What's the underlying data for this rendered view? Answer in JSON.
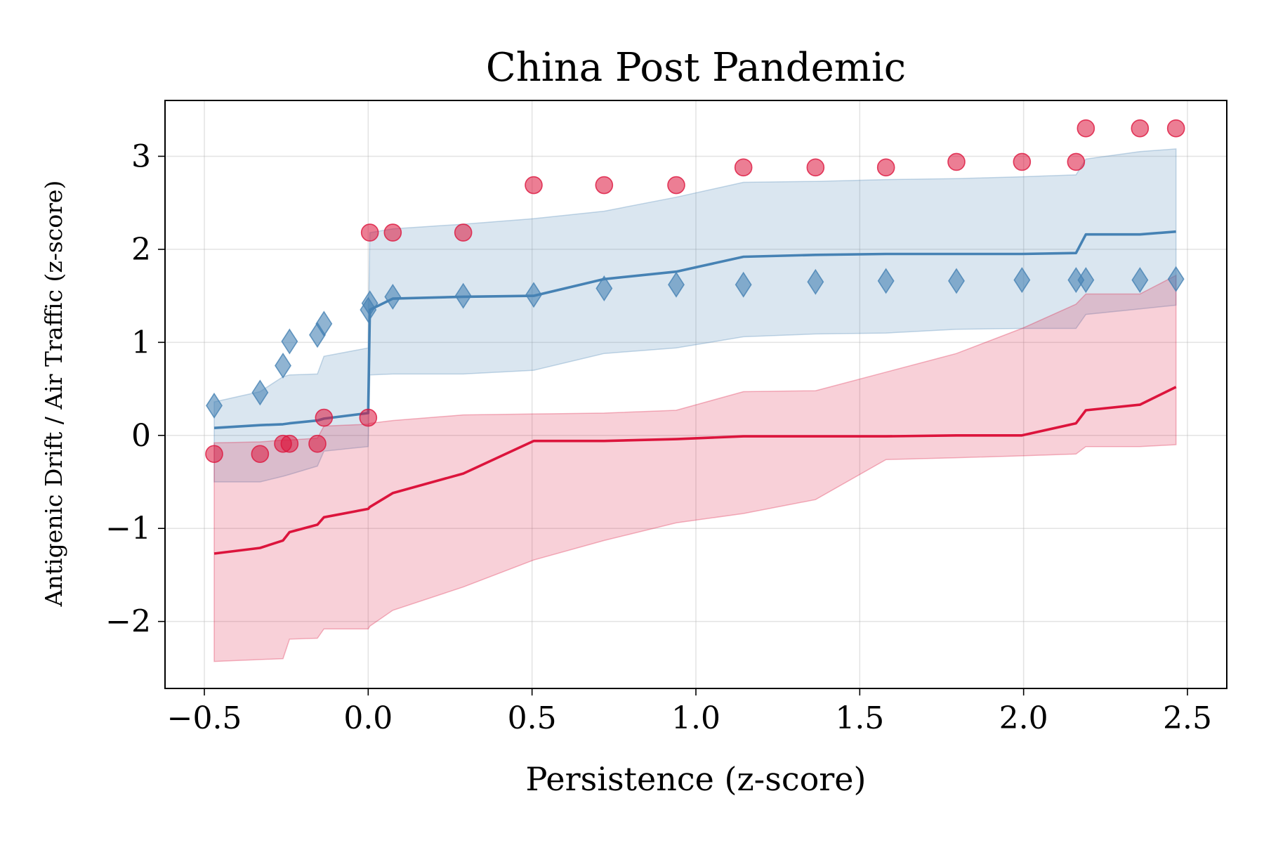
{
  "chart_data": {
    "type": "line",
    "title": "China Post Pandemic",
    "xlabel": "Persistence (z-score)",
    "ylabel": "Antigenic Drift / Air Traffic (z-score)",
    "xlim": [
      -0.62,
      2.62
    ],
    "ylim": [
      -2.72,
      3.6
    ],
    "xticks": [
      -0.5,
      0.0,
      0.5,
      1.0,
      1.5,
      2.0,
      2.5
    ],
    "xtick_labels": [
      "−0.5",
      "0.0",
      "0.5",
      "1.0",
      "1.5",
      "2.0",
      "2.5"
    ],
    "yticks": [
      -2,
      -1,
      0,
      1,
      2,
      3
    ],
    "ytick_labels": [
      "−2",
      "−1",
      "0",
      "1",
      "2",
      "3"
    ],
    "grid": true,
    "series": [
      {
        "color": "#4682b4",
        "marker": "diamond",
        "x": [
          -0.47,
          -0.33,
          -0.26,
          -0.24,
          -0.155,
          -0.135,
          0.0,
          0.005,
          0.075,
          0.29,
          0.505,
          0.72,
          0.94,
          1.145,
          1.365,
          1.58,
          1.795,
          1.995,
          2.16,
          2.19,
          2.355,
          2.465
        ],
        "points": [
          0.32,
          0.46,
          0.75,
          1.01,
          1.08,
          1.2,
          1.35,
          1.42,
          1.49,
          1.5,
          1.51,
          1.58,
          1.62,
          1.62,
          1.65,
          1.66,
          1.66,
          1.67,
          1.67,
          1.67,
          1.67,
          1.68
        ],
        "line": [
          0.08,
          0.11,
          0.12,
          0.13,
          0.16,
          0.18,
          0.24,
          1.35,
          1.47,
          1.49,
          1.5,
          1.68,
          1.76,
          1.92,
          1.94,
          1.95,
          1.95,
          1.95,
          1.96,
          2.16,
          2.16,
          2.19
        ],
        "band_upper": [
          0.36,
          0.47,
          0.63,
          0.65,
          0.66,
          0.85,
          0.94,
          2.18,
          2.22,
          2.27,
          2.33,
          2.41,
          2.56,
          2.72,
          2.73,
          2.75,
          2.76,
          2.78,
          2.8,
          2.97,
          3.05,
          3.08
        ],
        "band_lower": [
          -0.5,
          -0.5,
          -0.44,
          -0.42,
          -0.33,
          -0.17,
          -0.12,
          0.65,
          0.66,
          0.66,
          0.7,
          0.88,
          0.94,
          1.06,
          1.09,
          1.1,
          1.14,
          1.15,
          1.15,
          1.3,
          1.36,
          1.4
        ]
      },
      {
        "color": "#dc143c",
        "marker": "circle",
        "x": [
          -0.47,
          -0.33,
          -0.26,
          -0.24,
          -0.155,
          -0.135,
          0.0,
          0.005,
          0.075,
          0.29,
          0.505,
          0.72,
          0.94,
          1.145,
          1.365,
          1.58,
          1.795,
          1.995,
          2.16,
          2.19,
          2.355,
          2.465
        ],
        "points": [
          -0.2,
          -0.2,
          -0.09,
          -0.09,
          -0.09,
          0.19,
          0.19,
          2.18,
          2.18,
          2.18,
          2.69,
          2.69,
          2.69,
          2.88,
          2.88,
          2.88,
          2.94,
          2.94,
          2.94,
          3.3,
          3.3,
          3.3
        ],
        "line": [
          -1.27,
          -1.21,
          -1.13,
          -1.04,
          -0.96,
          -0.88,
          -0.79,
          -0.77,
          -0.62,
          -0.41,
          -0.06,
          -0.06,
          -0.04,
          -0.01,
          -0.01,
          -0.01,
          0.0,
          0.0,
          0.13,
          0.27,
          0.33,
          0.52
        ],
        "band_upper": [
          -0.08,
          -0.07,
          -0.05,
          -0.05,
          -0.03,
          0.1,
          0.12,
          0.13,
          0.16,
          0.22,
          0.23,
          0.24,
          0.27,
          0.47,
          0.48,
          0.68,
          0.88,
          1.15,
          1.41,
          1.52,
          1.52,
          1.72
        ],
        "band_lower": [
          -2.43,
          -2.41,
          -2.4,
          -2.19,
          -2.18,
          -2.08,
          -2.08,
          -2.05,
          -1.88,
          -1.63,
          -1.34,
          -1.13,
          -0.94,
          -0.84,
          -0.69,
          -0.26,
          -0.24,
          -0.22,
          -0.2,
          -0.12,
          -0.12,
          -0.1
        ]
      }
    ]
  }
}
